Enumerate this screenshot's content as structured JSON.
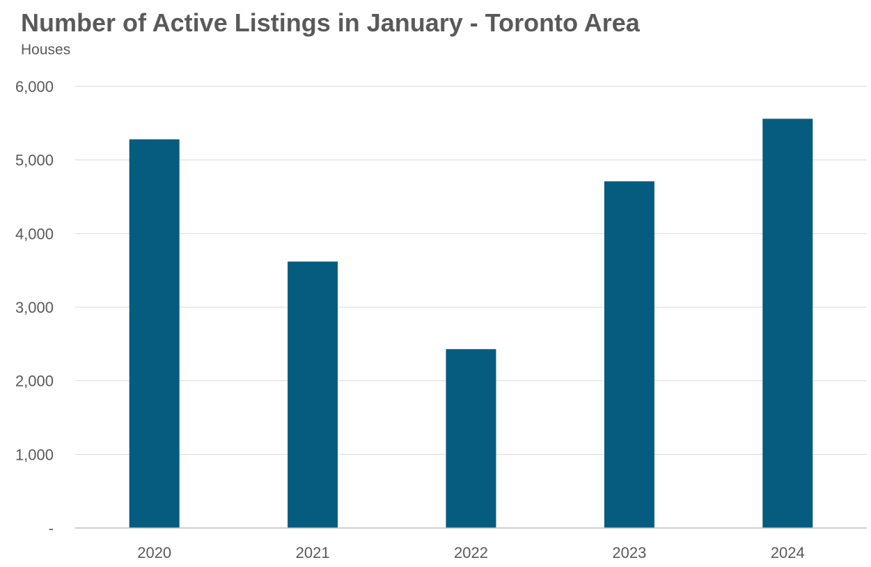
{
  "chart_data": {
    "type": "bar",
    "title": "Number of Active Listings in January - Toronto Area",
    "subtitle": "Houses",
    "categories": [
      "2020",
      "2021",
      "2022",
      "2023",
      "2024"
    ],
    "values": [
      5280,
      3620,
      2430,
      4710,
      5560
    ],
    "ylim": [
      0,
      6000
    ],
    "y_ticks": [
      0,
      1000,
      2000,
      3000,
      4000,
      5000,
      6000
    ],
    "y_tick_labels": [
      "-",
      "1,000",
      "2,000",
      "3,000",
      "4,000",
      "5,000",
      "6,000"
    ],
    "grid": true,
    "legend": "none",
    "bar_color": "#055c7e",
    "grid_color": "#d9d9d9",
    "text_color": "#595959"
  }
}
